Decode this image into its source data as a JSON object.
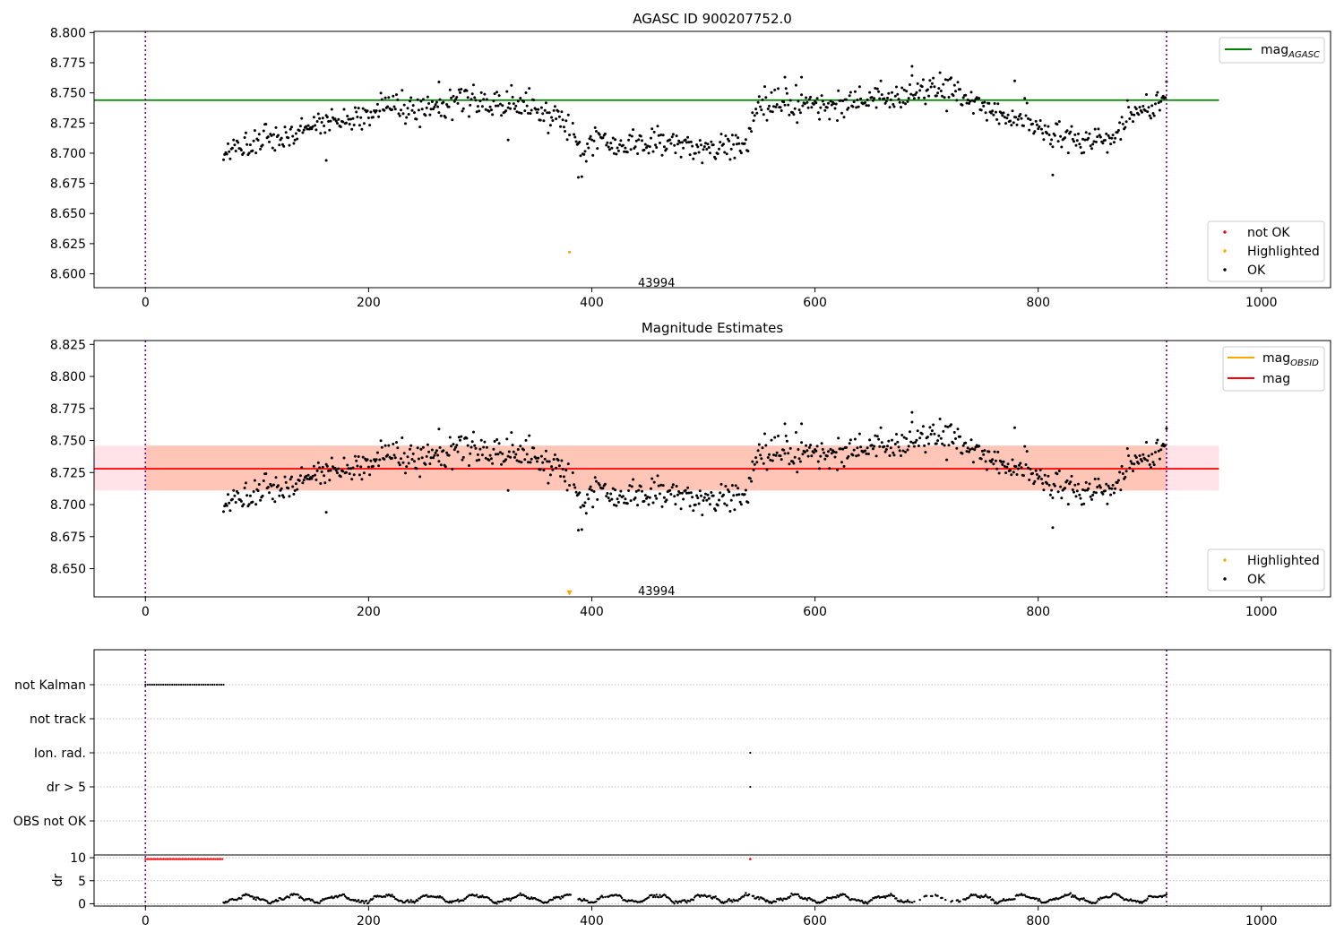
{
  "figure": {
    "colors": {
      "ok": "#000000",
      "not_ok": "#ff0000",
      "highlighted": "#ffa500",
      "agasc_line": "#008000",
      "mag_line": "#ff0000",
      "obsid_line": "#ffa500",
      "band_outer": "#ffc0cb",
      "band_inner": "#ffa07a",
      "vline": "#800080",
      "grid": "#b0b0b0"
    }
  },
  "chart_data": [
    {
      "type": "scatter",
      "title": "AGASC ID 900207752.0",
      "xlabel": "",
      "ylabel": "",
      "xlim": [
        -46,
        1062
      ],
      "ylim": [
        8.5885,
        8.801
      ],
      "x_ticks": [
        "0",
        "200",
        "400",
        "600",
        "800",
        "1000"
      ],
      "y_ticks": [
        "8.600",
        "8.625",
        "8.650",
        "8.675",
        "8.700",
        "8.725",
        "8.750",
        "8.775",
        "8.800"
      ],
      "agasc_mag": 8.744,
      "agasc_line_x": [
        -46,
        962
      ],
      "obsid_boundaries": [
        0,
        915
      ],
      "annotations": [
        {
          "text": "43994",
          "x": 458,
          "y": 8.593
        }
      ],
      "highlighted_points": [
        {
          "x": 380,
          "y": 8.618
        }
      ],
      "legend_mag": {
        "position": "top-right",
        "entries": [
          {
            "label": "mag",
            "subscript": "AGASC",
            "marker": "line",
            "color": "#008000"
          }
        ]
      },
      "legend_points": {
        "position": "bottom-right",
        "entries": [
          {
            "label": "not OK",
            "marker": "dot",
            "color": "#ff0000"
          },
          {
            "label": "Highlighted",
            "marker": "dot",
            "color": "#ffa500"
          },
          {
            "label": "OK",
            "marker": "dot",
            "color": "#000000"
          }
        ]
      },
      "trend": [
        [
          70,
          8.701
        ],
        [
          100,
          8.708
        ],
        [
          125,
          8.713
        ],
        [
          140,
          8.72
        ],
        [
          170,
          8.726
        ],
        [
          200,
          8.73
        ],
        [
          215,
          8.741
        ],
        [
          240,
          8.736
        ],
        [
          265,
          8.742
        ],
        [
          290,
          8.745
        ],
        [
          320,
          8.738
        ],
        [
          345,
          8.74
        ],
        [
          365,
          8.728
        ],
        [
          378,
          8.726
        ],
        [
          392,
          8.693
        ],
        [
          405,
          8.718
        ],
        [
          420,
          8.706
        ],
        [
          440,
          8.708
        ],
        [
          470,
          8.709
        ],
        [
          500,
          8.703
        ],
        [
          525,
          8.708
        ],
        [
          540,
          8.71
        ],
        [
          548,
          8.738
        ],
        [
          580,
          8.741
        ],
        [
          610,
          8.737
        ],
        [
          640,
          8.746
        ],
        [
          670,
          8.743
        ],
        [
          700,
          8.753
        ],
        [
          730,
          8.749
        ],
        [
          750,
          8.74
        ],
        [
          770,
          8.727
        ],
        [
          790,
          8.728
        ],
        [
          812,
          8.715
        ],
        [
          840,
          8.71
        ],
        [
          865,
          8.711
        ],
        [
          880,
          8.73
        ],
        [
          915,
          8.745
        ]
      ],
      "scatter": 0.006,
      "outliers": [
        [
          162,
          8.694
        ],
        [
          813,
          8.682
        ],
        [
          388,
          8.68
        ],
        [
          687,
          8.772
        ],
        [
          779,
          8.76
        ],
        [
          263,
          8.759
        ],
        [
          573,
          8.763
        ],
        [
          588,
          8.763
        ],
        [
          325,
          8.711
        ]
      ],
      "ok_x_range": [
        70,
        915
      ]
    },
    {
      "type": "scatter",
      "title": "Magnitude Estimates",
      "xlabel": "",
      "ylabel": "",
      "xlim": [
        -46,
        1062
      ],
      "ylim": [
        8.628,
        8.828
      ],
      "x_ticks": [
        "0",
        "200",
        "400",
        "600",
        "800",
        "1000"
      ],
      "y_ticks": [
        "8.650",
        "8.675",
        "8.700",
        "8.725",
        "8.750",
        "8.775",
        "8.800",
        "8.825"
      ],
      "mag": 8.728,
      "mag_band": [
        8.711,
        8.746
      ],
      "mag_line_x": [
        -46,
        962
      ],
      "obsid_boundaries": [
        0,
        915
      ],
      "annotations": [
        {
          "text": "43994",
          "x": 458,
          "y": 8.633
        }
      ],
      "highlighted_marker": {
        "x": 380,
        "y": 8.631,
        "shape": "triangle-down"
      },
      "legend_mag": {
        "position": "top-right",
        "entries": [
          {
            "label": "mag",
            "subscript": "OBSID",
            "marker": "line",
            "color": "#ffa500"
          },
          {
            "label": "mag",
            "subscript": "",
            "marker": "line",
            "color": "#ff0000"
          }
        ]
      },
      "legend_points": {
        "position": "bottom-right",
        "entries": [
          {
            "label": "Highlighted",
            "marker": "dot",
            "color": "#ffa500"
          },
          {
            "label": "OK",
            "marker": "dot",
            "color": "#000000"
          }
        ]
      }
    },
    {
      "type": "scatter",
      "title": "",
      "xlim": [
        -46,
        1062
      ],
      "x_ticks": [
        "0",
        "200",
        "400",
        "600",
        "800",
        "1000"
      ],
      "flag_rows": [
        "not Kalman",
        "not track",
        "Ion. rad.",
        "dr > 5",
        "OBS not OK"
      ],
      "flags": {
        "not Kalman": {
          "x_range": [
            0,
            70
          ],
          "color": "#000000"
        },
        "not track": {
          "x_range": [],
          "color": "#000000"
        },
        "Ion. rad.": {
          "points": [
            542
          ],
          "color": "#000000"
        },
        "dr > 5": {
          "points": [
            542
          ],
          "color": "#000000"
        },
        "OBS not OK": {
          "x_range": [],
          "color": "#000000"
        }
      },
      "dr": {
        "ylabel": "dr",
        "ylim": [
          -0.5,
          10.6
        ],
        "y_ticks": [
          "0",
          "5",
          "10"
        ],
        "capped_value": 9.7,
        "capped_red": {
          "x_range": [
            0,
            70
          ],
          "extra": [
            542
          ]
        },
        "x_range": [
          70,
          915
        ],
        "gaps": [
          [
            380,
            388
          ],
          [
            410,
            415
          ],
          [
            540,
            545
          ],
          [
            685,
            735
          ]
        ]
      },
      "obsid_boundaries": [
        0,
        915
      ]
    }
  ]
}
